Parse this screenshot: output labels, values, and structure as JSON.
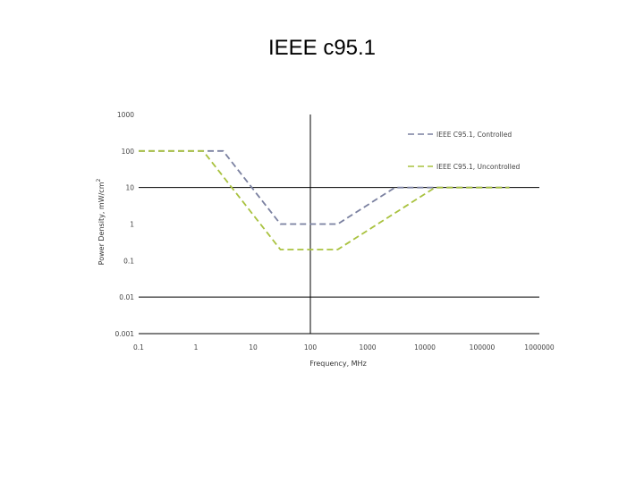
{
  "slide": {
    "title": "IEEE c95.1"
  },
  "chart_data": {
    "type": "line",
    "title": "",
    "xlabel": "Frequency, MHz",
    "ylabel": "Power Density, mW/cm",
    "ylabel_superscript": "2",
    "x_scale": "log",
    "y_scale": "log",
    "xlim": [
      0.1,
      1000000
    ],
    "ylim": [
      0.001,
      1000
    ],
    "x_ticks": [
      0.1,
      1,
      10,
      100,
      1000,
      10000,
      100000,
      1000000
    ],
    "x_tick_labels": [
      "0.1",
      "1",
      "10",
      "100",
      "1000",
      "10000",
      "100000",
      "1000000"
    ],
    "y_ticks": [
      1000,
      100,
      10,
      1,
      0.1,
      0.01,
      0.001
    ],
    "y_tick_labels": [
      "1000",
      "100",
      "10",
      "1",
      "0.1",
      "0.01",
      "0.001"
    ],
    "grid": "horizontal major lines",
    "legend_position": "top-right",
    "series": [
      {
        "name": "IEEE C95.1, Controlled",
        "color": "#7a80a0",
        "dash": "dashed",
        "x": [
          0.1,
          3,
          30,
          300,
          3000,
          15000,
          300000
        ],
        "y": [
          100,
          100,
          1,
          1,
          10,
          10,
          10
        ]
      },
      {
        "name": "IEEE C95.1, Uncontrolled",
        "color": "#a9c23f",
        "dash": "dashed",
        "x": [
          0.1,
          1.34,
          30,
          300,
          3000,
          15000,
          300000
        ],
        "y": [
          100,
          100,
          0.2,
          0.2,
          2,
          10,
          10
        ]
      }
    ]
  }
}
